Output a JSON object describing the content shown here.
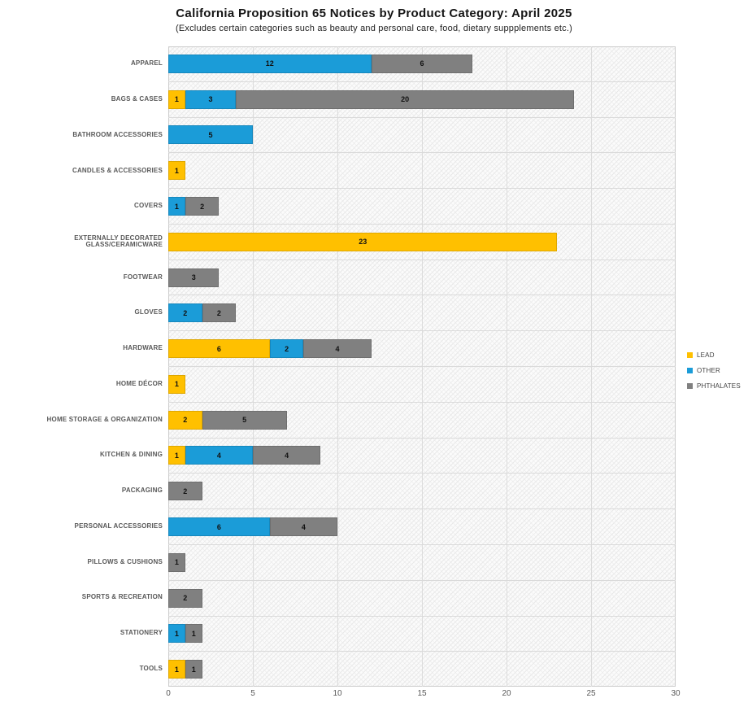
{
  "header": {
    "title": "California Proposition 65 Notices by Product Category: April 2025",
    "subtitle": "(Excludes certain categories such as beauty and personal care, food, dietary suppplements etc.)"
  },
  "chart_data": {
    "type": "bar",
    "orientation": "horizontal",
    "stacked": true,
    "title": "California Proposition 65 Notices by Product Category: April 2025",
    "subtitle": "(Excludes certain categories such as beauty and personal care, food, dietary suppplements etc.)",
    "categories": [
      "APPAREL",
      "BAGS & CASES",
      "BATHROOM ACCESSORIES",
      "CANDLES & ACCESSORIES",
      "COVERS",
      "EXTERNALLY DECORATED GLASS/CERAMICWARE",
      "FOOTWEAR",
      "GLOVES",
      "HARDWARE",
      "HOME DÉCOR",
      "HOME STORAGE & ORGANIZATION",
      "KITCHEN & DINING",
      "PACKAGING",
      "PERSONAL ACCESSORIES",
      "PILLOWS & CUSHIONS",
      "SPORTS & RECREATION",
      "STATIONERY",
      "TOOLS"
    ],
    "series": [
      {
        "name": "LEAD",
        "color": "#FFC000",
        "values": [
          0,
          1,
          0,
          1,
          0,
          23,
          0,
          0,
          6,
          1,
          2,
          1,
          0,
          0,
          0,
          0,
          0,
          1
        ]
      },
      {
        "name": "OTHER",
        "color": "#1B9CD8",
        "values": [
          12,
          3,
          5,
          0,
          1,
          0,
          0,
          2,
          2,
          0,
          0,
          4,
          0,
          6,
          0,
          0,
          1,
          0
        ]
      },
      {
        "name": "PHTHALATES",
        "color": "#808080",
        "values": [
          6,
          20,
          0,
          0,
          2,
          0,
          3,
          2,
          4,
          0,
          5,
          4,
          2,
          4,
          1,
          2,
          1,
          1
        ]
      }
    ],
    "xlabel": "",
    "ylabel": "",
    "xlim": [
      0,
      30
    ],
    "xticks": [
      0,
      5,
      10,
      15,
      20,
      25,
      30
    ],
    "grid": true,
    "legend_position": "right",
    "data_labels": true,
    "plot_background_pattern": "diagonal-crosshatch"
  }
}
